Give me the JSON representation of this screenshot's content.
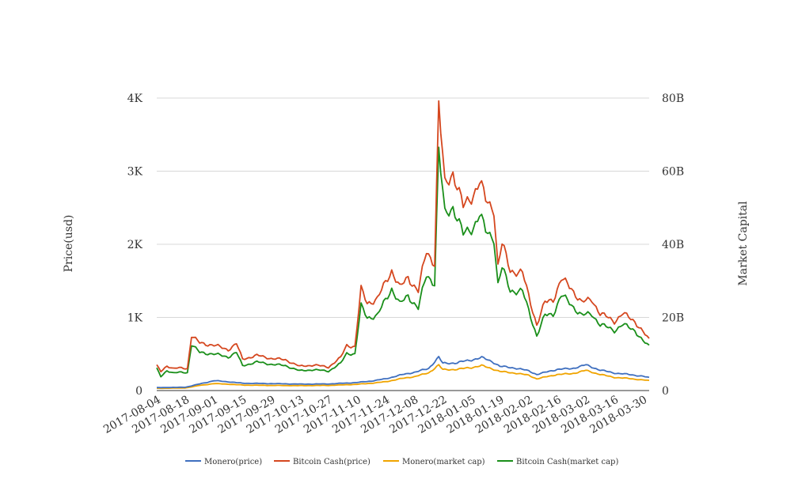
{
  "chart_data": {
    "type": "line",
    "title": "",
    "ylabel_left": "Price(usd)",
    "ylabel_right": "Market Capital",
    "grid": true,
    "legend_position": "bottom",
    "x_ticks": [
      "2017-08-04",
      "2017-08-18",
      "2017-09-01",
      "2017-09-15",
      "2017-09-29",
      "2017-10-13",
      "2017-10-27",
      "2017-11-10",
      "2017-11-24",
      "2017-12-08",
      "2017-12-22",
      "2018-01-05",
      "2018-01-19",
      "2018-02-02",
      "2018-02-16",
      "2018-03-02",
      "2018-03-16",
      "2018-03-30"
    ],
    "x_range": [
      "2017-08-04",
      "2018-04-02"
    ],
    "y_left_ticks": [
      {
        "value": 0,
        "label": "0"
      },
      {
        "value": 1000,
        "label": "1K"
      },
      {
        "value": 2000,
        "label": "2K"
      },
      {
        "value": 3000,
        "label": "3K"
      },
      {
        "value": 4000,
        "label": "4K"
      }
    ],
    "y_right_ticks": [
      {
        "value": 0,
        "label": "0"
      },
      {
        "value": 20000000000,
        "label": "20B"
      },
      {
        "value": 40000000000,
        "label": "40B"
      },
      {
        "value": 60000000000,
        "label": "60B"
      },
      {
        "value": 80000000000,
        "label": "80B"
      }
    ],
    "y_left_range": [
      0,
      4000
    ],
    "y_right_range": [
      0,
      80000000000
    ],
    "series": [
      {
        "name": "Monero(price)",
        "axis": "left",
        "color": "#3f6fbf",
        "points": [
          [
            "2017-08-04",
            40
          ],
          [
            "2017-08-18",
            45
          ],
          [
            "2017-08-25",
            90
          ],
          [
            "2017-09-01",
            135
          ],
          [
            "2017-09-08",
            120
          ],
          [
            "2017-09-15",
            100
          ],
          [
            "2017-09-29",
            95
          ],
          [
            "2017-10-13",
            88
          ],
          [
            "2017-10-27",
            90
          ],
          [
            "2017-11-10",
            110
          ],
          [
            "2017-11-17",
            130
          ],
          [
            "2017-11-24",
            160
          ],
          [
            "2017-12-01",
            210
          ],
          [
            "2017-12-08",
            250
          ],
          [
            "2017-12-15",
            300
          ],
          [
            "2017-12-20",
            460
          ],
          [
            "2017-12-22",
            370
          ],
          [
            "2017-12-29",
            380
          ],
          [
            "2018-01-05",
            420
          ],
          [
            "2018-01-10",
            450
          ],
          [
            "2018-01-15",
            400
          ],
          [
            "2018-01-19",
            330
          ],
          [
            "2018-01-26",
            310
          ],
          [
            "2018-02-02",
            270
          ],
          [
            "2018-02-06",
            220
          ],
          [
            "2018-02-16",
            290
          ],
          [
            "2018-02-23",
            300
          ],
          [
            "2018-03-02",
            350
          ],
          [
            "2018-03-09",
            280
          ],
          [
            "2018-03-16",
            240
          ],
          [
            "2018-03-23",
            220
          ],
          [
            "2018-03-30",
            195
          ],
          [
            "2018-04-02",
            175
          ]
        ]
      },
      {
        "name": "Bitcoin Cash(price)",
        "axis": "left",
        "color": "#d5471f",
        "points": [
          [
            "2017-08-04",
            340
          ],
          [
            "2017-08-06",
            260
          ],
          [
            "2017-08-09",
            340
          ],
          [
            "2017-08-12",
            300
          ],
          [
            "2017-08-16",
            310
          ],
          [
            "2017-08-19",
            300
          ],
          [
            "2017-08-21",
            750
          ],
          [
            "2017-08-25",
            650
          ],
          [
            "2017-09-01",
            620
          ],
          [
            "2017-09-08",
            560
          ],
          [
            "2017-09-12",
            640
          ],
          [
            "2017-09-15",
            430
          ],
          [
            "2017-09-22",
            480
          ],
          [
            "2017-09-29",
            440
          ],
          [
            "2017-10-06",
            420
          ],
          [
            "2017-10-13",
            330
          ],
          [
            "2017-10-20",
            350
          ],
          [
            "2017-10-27",
            320
          ],
          [
            "2017-11-02",
            450
          ],
          [
            "2017-11-05",
            620
          ],
          [
            "2017-11-09",
            600
          ],
          [
            "2017-11-12",
            1380
          ],
          [
            "2017-11-15",
            1200
          ],
          [
            "2017-11-20",
            1250
          ],
          [
            "2017-11-27",
            1650
          ],
          [
            "2017-12-01",
            1400
          ],
          [
            "2017-12-05",
            1550
          ],
          [
            "2017-12-10",
            1360
          ],
          [
            "2017-12-14",
            1900
          ],
          [
            "2017-12-18",
            1750
          ],
          [
            "2017-12-20",
            3900
          ],
          [
            "2017-12-23",
            2800
          ],
          [
            "2017-12-27",
            3000
          ],
          [
            "2018-01-01",
            2500
          ],
          [
            "2018-01-06",
            2700
          ],
          [
            "2018-01-09",
            2850
          ],
          [
            "2018-01-12",
            2600
          ],
          [
            "2018-01-16",
            2500
          ],
          [
            "2018-01-18",
            1700
          ],
          [
            "2018-01-20",
            2000
          ],
          [
            "2018-01-24",
            1650
          ],
          [
            "2018-01-30",
            1600
          ],
          [
            "2018-02-02",
            1300
          ],
          [
            "2018-02-06",
            900
          ],
          [
            "2018-02-10",
            1200
          ],
          [
            "2018-02-14",
            1250
          ],
          [
            "2018-02-18",
            1520
          ],
          [
            "2018-02-23",
            1400
          ],
          [
            "2018-02-28",
            1200
          ],
          [
            "2018-03-05",
            1250
          ],
          [
            "2018-03-09",
            1050
          ],
          [
            "2018-03-16",
            950
          ],
          [
            "2018-03-20",
            1050
          ],
          [
            "2018-03-26",
            950
          ],
          [
            "2018-03-30",
            800
          ],
          [
            "2018-04-02",
            690
          ]
        ]
      },
      {
        "name": "Monero(market cap)",
        "axis": "right",
        "color": "#f0a400",
        "points": [
          [
            "2017-08-04",
            600000000
          ],
          [
            "2017-08-18",
            700000000
          ],
          [
            "2017-08-25",
            1400000000
          ],
          [
            "2017-09-01",
            1900000000
          ],
          [
            "2017-09-08",
            1750000000
          ],
          [
            "2017-09-15",
            1500000000
          ],
          [
            "2017-09-29",
            1400000000
          ],
          [
            "2017-10-13",
            1350000000
          ],
          [
            "2017-10-27",
            1400000000
          ],
          [
            "2017-11-10",
            1700000000
          ],
          [
            "2017-11-17",
            2000000000
          ],
          [
            "2017-11-24",
            2400000000
          ],
          [
            "2017-12-01",
            3200000000
          ],
          [
            "2017-12-08",
            3800000000
          ],
          [
            "2017-12-15",
            4800000000
          ],
          [
            "2017-12-20",
            7000000000
          ],
          [
            "2017-12-22",
            5700000000
          ],
          [
            "2017-12-29",
            5800000000
          ],
          [
            "2018-01-05",
            6300000000
          ],
          [
            "2018-01-10",
            6800000000
          ],
          [
            "2018-01-15",
            6000000000
          ],
          [
            "2018-01-19",
            5200000000
          ],
          [
            "2018-01-26",
            4800000000
          ],
          [
            "2018-02-02",
            4200000000
          ],
          [
            "2018-02-06",
            3200000000
          ],
          [
            "2018-02-16",
            4400000000
          ],
          [
            "2018-02-23",
            4600000000
          ],
          [
            "2018-03-02",
            5500000000
          ],
          [
            "2018-03-09",
            4400000000
          ],
          [
            "2018-03-16",
            3600000000
          ],
          [
            "2018-03-23",
            3300000000
          ],
          [
            "2018-03-30",
            2900000000
          ],
          [
            "2018-04-02",
            2700000000
          ]
        ]
      },
      {
        "name": "Bitcoin Cash(market cap)",
        "axis": "right",
        "color": "#1a8f1a",
        "points": [
          [
            "2017-08-04",
            6000000000
          ],
          [
            "2017-08-06",
            3800000000
          ],
          [
            "2017-08-09",
            5500000000
          ],
          [
            "2017-08-12",
            4800000000
          ],
          [
            "2017-08-16",
            5000000000
          ],
          [
            "2017-08-19",
            4900000000
          ],
          [
            "2017-08-21",
            12600000000
          ],
          [
            "2017-08-25",
            10400000000
          ],
          [
            "2017-09-01",
            10000000000
          ],
          [
            "2017-09-08",
            9200000000
          ],
          [
            "2017-09-12",
            10400000000
          ],
          [
            "2017-09-15",
            6800000000
          ],
          [
            "2017-09-22",
            7800000000
          ],
          [
            "2017-09-29",
            7200000000
          ],
          [
            "2017-10-06",
            6800000000
          ],
          [
            "2017-10-13",
            5400000000
          ],
          [
            "2017-10-20",
            5700000000
          ],
          [
            "2017-10-27",
            5300000000
          ],
          [
            "2017-11-02",
            7400000000
          ],
          [
            "2017-11-05",
            10200000000
          ],
          [
            "2017-11-09",
            10000000000
          ],
          [
            "2017-11-12",
            23000000000
          ],
          [
            "2017-11-15",
            20000000000
          ],
          [
            "2017-11-20",
            20500000000
          ],
          [
            "2017-11-27",
            28000000000
          ],
          [
            "2017-12-01",
            23500000000
          ],
          [
            "2017-12-05",
            26000000000
          ],
          [
            "2017-12-10",
            22500000000
          ],
          [
            "2017-12-14",
            31500000000
          ],
          [
            "2017-12-18",
            29500000000
          ],
          [
            "2017-12-20",
            65500000000
          ],
          [
            "2017-12-23",
            48000000000
          ],
          [
            "2017-12-27",
            50500000000
          ],
          [
            "2018-01-01",
            42500000000
          ],
          [
            "2018-01-06",
            45000000000
          ],
          [
            "2018-01-09",
            48000000000
          ],
          [
            "2018-01-12",
            43500000000
          ],
          [
            "2018-01-16",
            42000000000
          ],
          [
            "2018-01-18",
            29000000000
          ],
          [
            "2018-01-20",
            33500000000
          ],
          [
            "2018-01-24",
            27500000000
          ],
          [
            "2018-01-30",
            27000000000
          ],
          [
            "2018-02-02",
            22000000000
          ],
          [
            "2018-02-06",
            15000000000
          ],
          [
            "2018-02-10",
            20500000000
          ],
          [
            "2018-02-14",
            21000000000
          ],
          [
            "2018-02-18",
            26000000000
          ],
          [
            "2018-02-23",
            23500000000
          ],
          [
            "2018-02-28",
            20500000000
          ],
          [
            "2018-03-05",
            21000000000
          ],
          [
            "2018-03-09",
            18000000000
          ],
          [
            "2018-03-16",
            16500000000
          ],
          [
            "2018-03-20",
            18000000000
          ],
          [
            "2018-03-26",
            16500000000
          ],
          [
            "2018-03-30",
            13500000000
          ],
          [
            "2018-04-02",
            12000000000
          ]
        ]
      }
    ]
  }
}
